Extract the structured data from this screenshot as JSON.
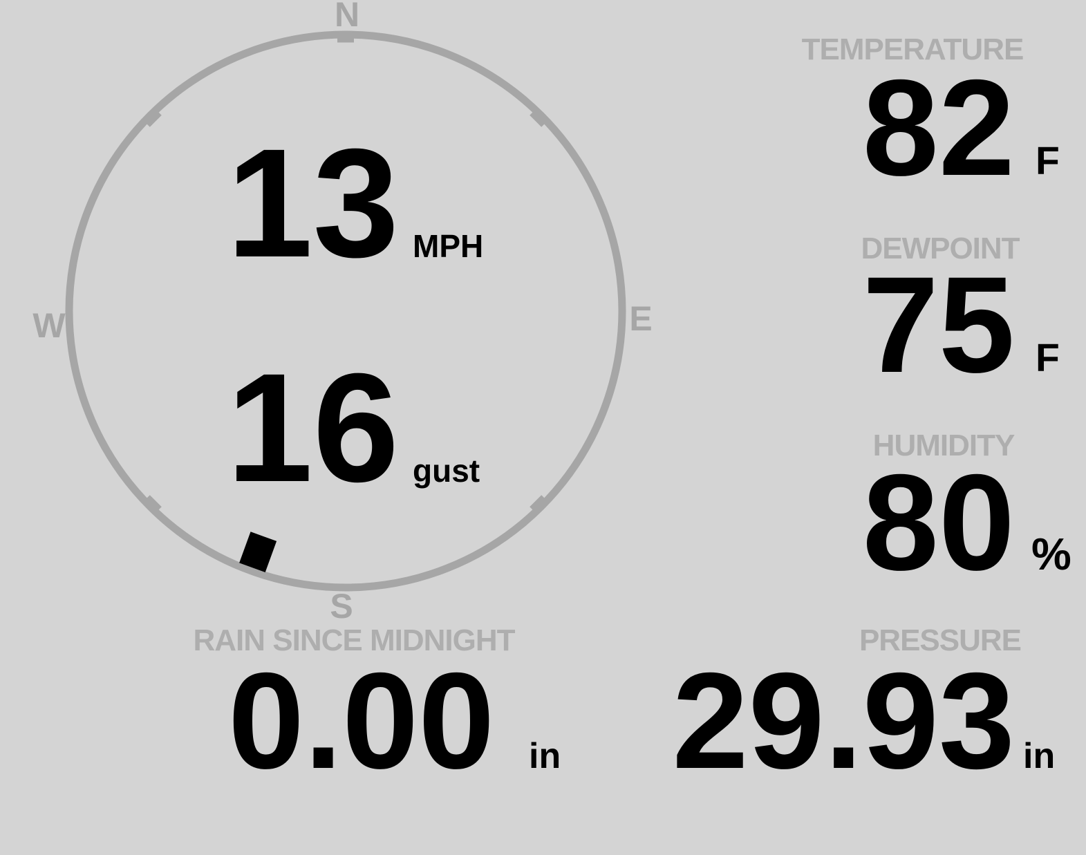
{
  "compass": {
    "cardinal": {
      "north": "N",
      "east": "E",
      "south": "S",
      "west": "W"
    },
    "wind_speed": {
      "value": "13",
      "unit": "MPH"
    },
    "wind_gust": {
      "value": "16",
      "unit": "gust"
    },
    "wind_direction_deg": 200
  },
  "metrics": {
    "temperature": {
      "label": "TEMPERATURE",
      "value": "82",
      "unit": "F"
    },
    "dewpoint": {
      "label": "DEWPOINT",
      "value": "75",
      "unit": "F"
    },
    "humidity": {
      "label": "HUMIDITY",
      "value": "80",
      "unit": "%"
    },
    "pressure": {
      "label": "PRESSURE",
      "value": "29.93",
      "unit": "in"
    },
    "rain_since_midnight": {
      "label": "RAIN SINCE MIDNIGHT",
      "value": "0.00",
      "unit": "in"
    }
  },
  "colors": {
    "background": "#d4d4d4",
    "muted_label": "#aeaeae",
    "dial_gray": "#a6a6a6",
    "value_ink": "#000000"
  }
}
